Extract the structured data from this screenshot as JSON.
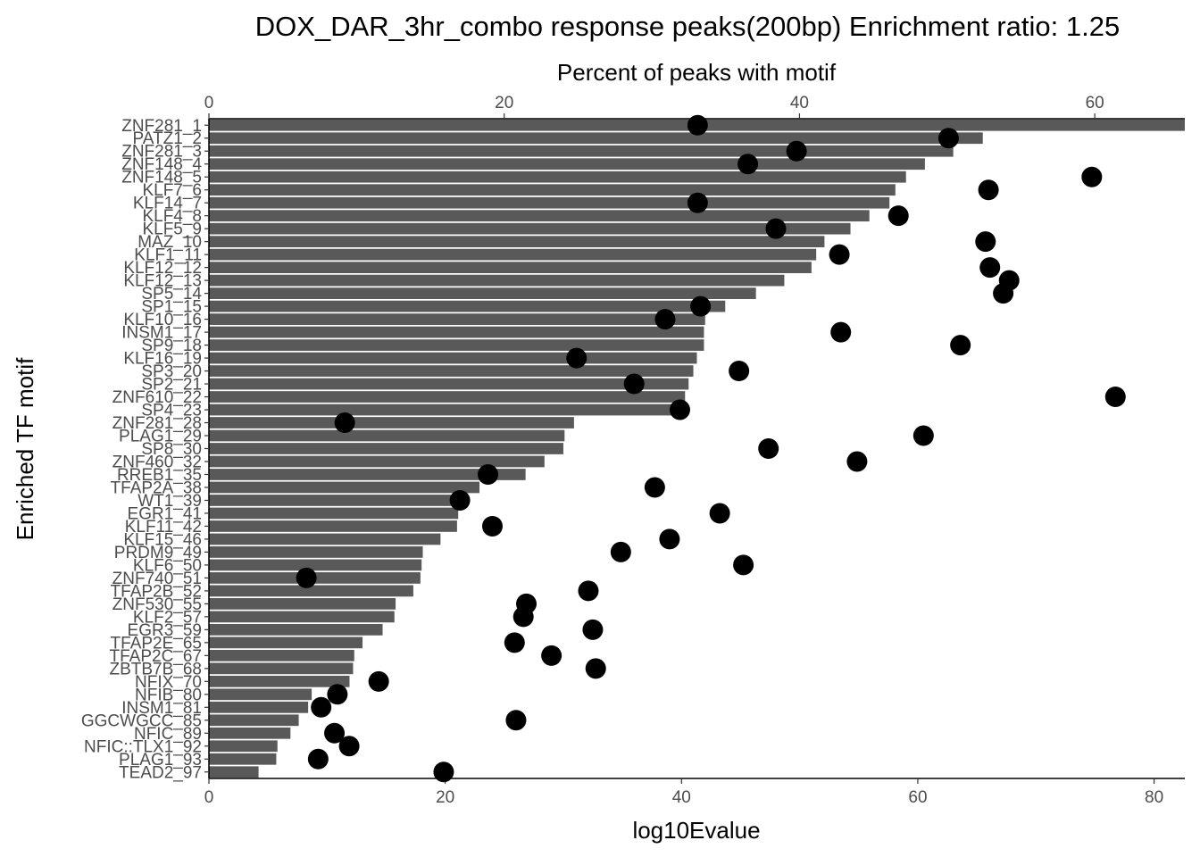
{
  "chart_data": {
    "type": "bar",
    "title": "DOX_DAR_3hr_combo response peaks(200bp) Enrichment ratio: 1.25",
    "xlabel": "log10Evalue",
    "ylabel": "Enriched TF motif",
    "x2label": "Percent of peaks with motif",
    "xlim": [
      0,
      82.6
    ],
    "x2lim": [
      0,
      66.1
    ],
    "xticks": [
      0,
      20,
      40,
      60,
      80
    ],
    "x2ticks": [
      0,
      20,
      40,
      60
    ],
    "grid": false,
    "categories": [
      "ZNF281_1",
      "PATZ1_2",
      "ZNF281_3",
      "ZNF148_4",
      "ZNF148_5",
      "KLF7_6",
      "KLF14_7",
      "KLF4_8",
      "KLF5_9",
      "MAZ_10",
      "KLF1_11",
      "KLF12_12",
      "KLF12_13",
      "SP5_14",
      "SP1_15",
      "KLF10_16",
      "INSM1_17",
      "SP9_18",
      "KLF16_19",
      "SP3_20",
      "SP2_21",
      "ZNF610_22",
      "SP4_23",
      "ZNF281_28",
      "PLAG1_29",
      "SP8_30",
      "ZNF460_32",
      "RREB1_35",
      "TFAP2A_38",
      "WT1_39",
      "EGR1_41",
      "KLF11_42",
      "KLF15_46",
      "PRDM9_49",
      "KLF6_50",
      "ZNF740_51",
      "TFAP2B_52",
      "ZNF530_55",
      "KLF2_57",
      "EGR3_59",
      "TFAP2E_65",
      "TFAP2C_67",
      "ZBTB7B_68",
      "NFIX_70",
      "NFIB_80",
      "INSM1_81",
      "GGCWGCC_85",
      "NFIC_89",
      "NFIC::TLX1_92",
      "PLAG1_93",
      "TEAD2_97"
    ],
    "series": [
      {
        "name": "log10Evalue",
        "type": "bar",
        "values": [
          82.6,
          65.5,
          63.0,
          60.6,
          59.0,
          58.1,
          57.6,
          55.9,
          54.3,
          52.1,
          51.4,
          51.0,
          48.7,
          46.3,
          43.7,
          42.0,
          41.9,
          41.9,
          41.3,
          41.0,
          40.6,
          40.3,
          39.9,
          30.9,
          30.1,
          30.0,
          28.4,
          26.8,
          22.9,
          21.2,
          21.1,
          21.0,
          19.6,
          18.1,
          18.0,
          17.9,
          17.3,
          15.8,
          15.7,
          14.7,
          13.0,
          12.3,
          12.2,
          11.9,
          8.7,
          8.4,
          7.6,
          6.9,
          5.8,
          5.7,
          4.2
        ]
      },
      {
        "name": "Percent of peaks with motif",
        "type": "scatter",
        "values": [
          33.1,
          50.1,
          39.8,
          36.5,
          59.8,
          52.8,
          33.1,
          46.7,
          38.4,
          52.6,
          42.7,
          52.9,
          54.2,
          53.8,
          33.3,
          30.9,
          42.8,
          50.9,
          24.9,
          35.9,
          28.8,
          61.4,
          31.9,
          9.2,
          48.4,
          37.9,
          43.9,
          18.9,
          30.2,
          17.0,
          34.6,
          19.2,
          31.2,
          27.9,
          36.2,
          6.6,
          25.7,
          21.5,
          21.3,
          26.0,
          20.7,
          23.2,
          26.2,
          11.5,
          8.7,
          7.6,
          20.8,
          8.5,
          9.5,
          7.4,
          15.9
        ]
      }
    ]
  }
}
